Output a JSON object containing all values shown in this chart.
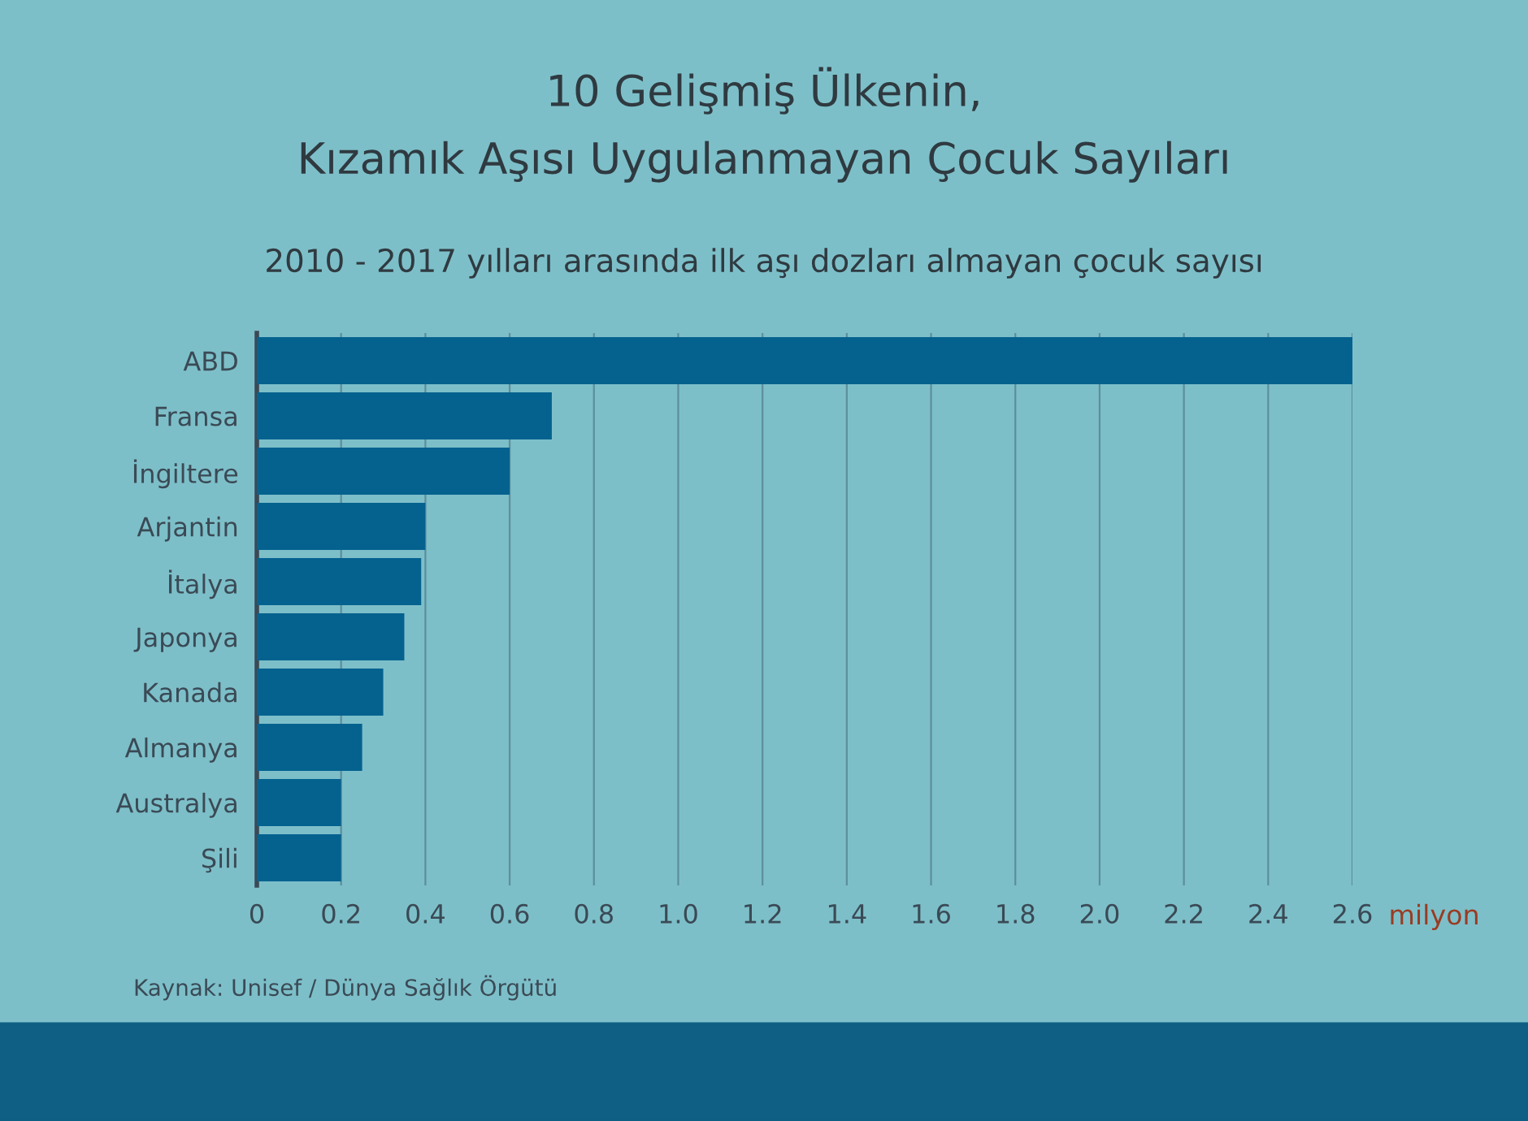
{
  "chart_data": {
    "type": "bar",
    "orientation": "horizontal",
    "title": "10 Gelişmiş Ülkenin,\nKızamık Aşısı Uygulanmayan Çocuk Sayıları",
    "subtitle": "2010 - 2017 yılları arasında ilk aşı dozları almayan çocuk sayısı",
    "xlabel": "milyon",
    "categories": [
      "ABD",
      "Fransa",
      "İngiltere",
      "Arjantin",
      "İtalya",
      "Japonya",
      "Kanada",
      "Almanya",
      "Australya",
      "Şili"
    ],
    "values": [
      2.6,
      0.7,
      0.6,
      0.4,
      0.39,
      0.35,
      0.3,
      0.25,
      0.2,
      0.2
    ],
    "color": "#05628f",
    "xlim": [
      0,
      2.6
    ],
    "xticks": [
      0,
      0.2,
      0.4,
      0.6,
      0.8,
      {
        "value": 1.0,
        "label": "1.0"
      },
      1.2,
      1.4,
      1.6,
      1.8,
      {
        "value": 2.0,
        "label": "2.0"
      },
      2.2,
      2.4,
      2.6
    ],
    "grid": "x",
    "annotations": [
      "Kaynak: Unisef / Dünya Sağlık Örgütü"
    ]
  }
}
